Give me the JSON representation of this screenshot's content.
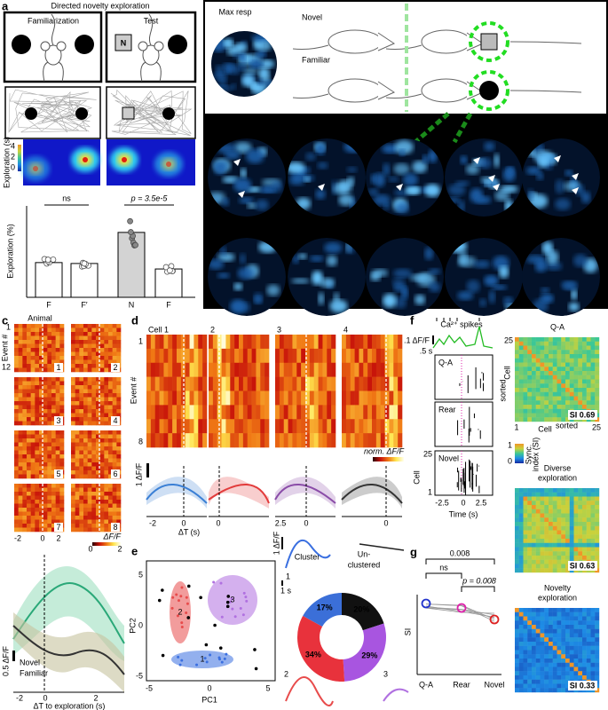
{
  "panels": {
    "a": {
      "label": "a",
      "title": "Directed novelty exploration",
      "familiarization": "Familiarization",
      "test": "Test",
      "objects": [
        "F",
        "F′",
        "N",
        "F"
      ],
      "heat_axis": "Exploration (s)",
      "heat_ticks": [
        "4",
        "2",
        "0"
      ],
      "ns": "ns",
      "p": "p = 3.5e-5"
    },
    "b": {
      "label": "b",
      "max_resp": "Max resp",
      "novel": "Novel",
      "familiar": "Familiar",
      "row_novel": "Novel",
      "row_familiar": "Familiar"
    },
    "c": {
      "label": "c",
      "animal": "Animal",
      "event": "Event #",
      "event_first": "1",
      "event_last": "12",
      "animals": [
        "1",
        "2",
        "3",
        "4",
        "5",
        "6",
        "7",
        "8"
      ],
      "xticks": [
        "-2",
        "0",
        "2"
      ],
      "cbar_label": "ΔF/F",
      "cbar_min": "0",
      "cbar_max": "2",
      "legend_novel": "Novel",
      "legend_familiar": "Familiar",
      "scale": "0.5 ΔF/F",
      "line_xticks": [
        "-2",
        "0",
        "2"
      ],
      "xlabel": "ΔT to exploration (s)"
    },
    "d": {
      "label": "d",
      "cells": [
        "Cell 1",
        "2",
        "3",
        "4"
      ],
      "event": "Event #",
      "event_first": "1",
      "event_last": "8",
      "cbar_label": "norm. ΔF/F",
      "scale": "1 ΔF/F",
      "xticks": [
        "-2",
        "0",
        "0",
        "2.5",
        "0",
        "0"
      ],
      "xlabel": "ΔT (s)"
    },
    "e": {
      "label": "e",
      "cluster_ids": [
        "2",
        "3",
        "1"
      ],
      "xticks": [
        "-5",
        "0",
        "5"
      ],
      "yticks": [
        "5",
        "0",
        "-5"
      ],
      "xlabel": "PC1",
      "ylabel": "PC2",
      "cluster": "Cluster",
      "unclustered": [
        "Un-",
        "clustered"
      ],
      "scale_y": "1 ΔF/F",
      "scale_x": "1 s",
      "trace_labels": [
        "1",
        "2",
        "3"
      ]
    },
    "f": {
      "label": "f",
      "spikes": "Ca²⁺ spikes",
      "scale_y": ".1 ΔF/F",
      "scale_x": ".5 s",
      "conditions": [
        "Q-A",
        "Rear",
        "Novel"
      ],
      "ylabel": "Cell",
      "yfirst": "1",
      "ylast": "25",
      "xticks": [
        "-2.5",
        "0",
        "2.5"
      ],
      "xlabel": "Time (s)",
      "matrices": [
        {
          "title": [
            "Q-A"
          ],
          "si": "SI 0.69"
        },
        {
          "title": [
            "Diverse",
            "exploration"
          ],
          "si": "SI 0.63"
        },
        {
          "title": [
            "Novelty",
            "exploration"
          ],
          "si": "SI 0.33"
        }
      ],
      "cell_label": "Cell",
      "sorted": "sorted",
      "first": "1",
      "last": "25",
      "cbar": [
        "Sync.",
        "index (SI)"
      ],
      "cbar_max": "1",
      "cbar_min": "0"
    },
    "g": {
      "label": "g",
      "top_p": "0.008",
      "ns": "ns",
      "p": "p = 0.008",
      "ylabel": "SI",
      "xticks": [
        "Q-A",
        "Rear",
        "Novel"
      ]
    }
  },
  "chart_data": [
    {
      "type": "bar",
      "ylabel": "Exploration (%)",
      "categories": [
        "F",
        "F′",
        "N",
        "F"
      ],
      "values": [
        38,
        37,
        71,
        31
      ],
      "colors": [
        "#ffffff",
        "#ffffff",
        "#d3d3d3",
        "#ffffff"
      ],
      "ylim": [
        0,
        100
      ]
    },
    {
      "type": "pie",
      "values": [
        20,
        29,
        34,
        17
      ],
      "value_labels": [
        "20%",
        "29%",
        "34%",
        "17%"
      ],
      "colors": [
        "#111111",
        "#a855e0",
        "#e8323c",
        "#3b6fd8"
      ]
    }
  ]
}
